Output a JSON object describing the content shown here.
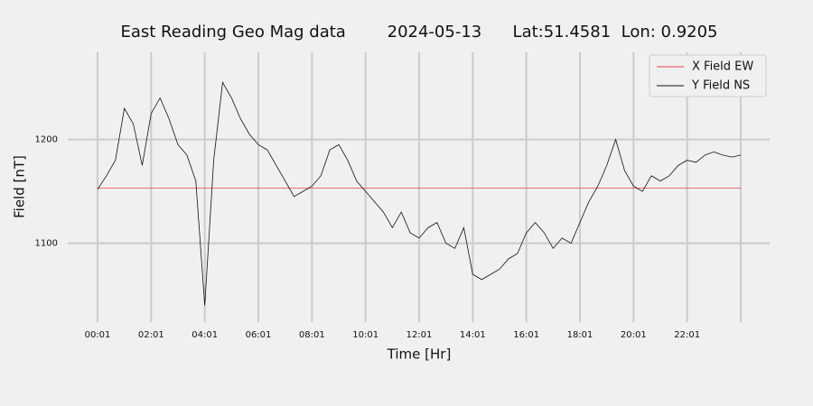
{
  "chart_data": {
    "type": "line",
    "title": "East Reading Geo Mag data        2024-05-13      Lat:51.4581  Lon: 0.9205",
    "xlabel": "Time  [Hr]",
    "ylabel": "Field  [nT]",
    "x": [
      "00:01",
      "00:21",
      "00:41",
      "01:01",
      "01:21",
      "01:41",
      "02:01",
      "02:21",
      "02:41",
      "03:01",
      "03:21",
      "03:41",
      "04:01",
      "04:21",
      "04:41",
      "05:01",
      "05:21",
      "05:41",
      "06:01",
      "06:21",
      "06:41",
      "07:01",
      "07:21",
      "07:41",
      "08:01",
      "08:21",
      "08:41",
      "09:01",
      "09:21",
      "09:41",
      "10:01",
      "10:21",
      "10:41",
      "11:01",
      "11:21",
      "11:41",
      "12:01",
      "12:21",
      "12:41",
      "13:01",
      "13:21",
      "13:41",
      "14:01",
      "14:21",
      "14:41",
      "15:01",
      "15:21",
      "15:41",
      "16:01",
      "16:21",
      "16:41",
      "17:01",
      "17:21",
      "17:41",
      "18:01",
      "18:21",
      "18:41",
      "19:01",
      "19:21",
      "19:41",
      "20:01",
      "20:21",
      "20:41",
      "21:01",
      "21:21",
      "21:41",
      "22:01",
      "22:21",
      "22:41",
      "23:01",
      "23:21",
      "23:41",
      "24:01"
    ],
    "series": [
      {
        "name": "X Field EW",
        "color": "#e8424a",
        "values": [
          1153,
          1153,
          1153,
          1153,
          1153,
          1153,
          1153,
          1153,
          1153,
          1153,
          1153,
          1153,
          1153,
          1153,
          1153,
          1153,
          1153,
          1153,
          1153,
          1153,
          1153,
          1153,
          1153,
          1153,
          1153,
          1153,
          1153,
          1153,
          1153,
          1153,
          1153,
          1153,
          1153,
          1153,
          1153,
          1153,
          1153,
          1153,
          1153,
          1153,
          1153,
          1153,
          1153,
          1153,
          1153,
          1153,
          1153,
          1153,
          1153,
          1153,
          1153,
          1153,
          1153,
          1153,
          1153,
          1153,
          1153,
          1153,
          1153,
          1153,
          1153,
          1153,
          1153,
          1153,
          1153,
          1153,
          1153,
          1153,
          1153,
          1153,
          1153,
          1153,
          1153
        ]
      },
      {
        "name": "Y Field NS",
        "color": "#111111",
        "values": [
          1152,
          1165,
          1180,
          1230,
          1215,
          1175,
          1225,
          1240,
          1220,
          1195,
          1185,
          1160,
          1040,
          1180,
          1255,
          1240,
          1220,
          1205,
          1195,
          1190,
          1175,
          1160,
          1145,
          1150,
          1155,
          1165,
          1190,
          1195,
          1180,
          1160,
          1150,
          1140,
          1130,
          1115,
          1130,
          1110,
          1105,
          1115,
          1120,
          1100,
          1095,
          1115,
          1070,
          1065,
          1070,
          1075,
          1085,
          1090,
          1110,
          1120,
          1110,
          1095,
          1105,
          1100,
          1120,
          1140,
          1155,
          1175,
          1200,
          1170,
          1155,
          1150,
          1165,
          1160,
          1165,
          1175,
          1180,
          1178,
          1185,
          1188,
          1185,
          1183,
          1185
        ]
      }
    ],
    "xlim": [
      "00:01",
      "24:01"
    ],
    "xticks": [
      "00:01",
      "02:01",
      "04:01",
      "06:01",
      "08:01",
      "10:01",
      "12:01",
      "14:01",
      "16:01",
      "18:01",
      "20:01",
      "22:01"
    ],
    "ylim": [
      1024,
      1284
    ],
    "yticks": [
      1100,
      1200
    ],
    "grid": true,
    "legend": "upper right"
  }
}
